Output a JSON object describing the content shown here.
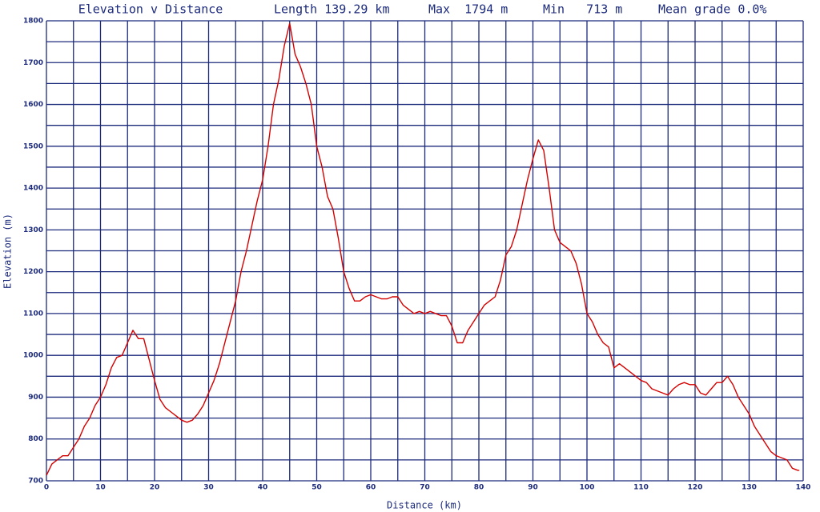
{
  "chart_data": {
    "type": "line",
    "title": "Elevation v Distance",
    "stats": [
      "Length 139.29 km",
      "Max  1794 m",
      "Min   713 m",
      "Mean grade 0.0%"
    ],
    "x_label": "Distance (km)",
    "y_label": "Elevation (m)",
    "color": "#d40000",
    "grid": true,
    "grid_color": "#1c2a7c",
    "xlim": [
      0,
      140
    ],
    "ylim": [
      700,
      1800
    ],
    "xticks": [
      0,
      10,
      20,
      30,
      40,
      50,
      60,
      70,
      80,
      90,
      100,
      110,
      120,
      130,
      140
    ],
    "yticks": [
      700,
      800,
      900,
      1000,
      1100,
      1200,
      1300,
      1400,
      1500,
      1600,
      1700,
      1800
    ],
    "x_minor_ticks": [
      5,
      15,
      25,
      35,
      45,
      55,
      65,
      75,
      85,
      95,
      105,
      115,
      125,
      135
    ],
    "y_minor_ticks": [
      750,
      850,
      950,
      1050,
      1150,
      1250,
      1350,
      1450,
      1550,
      1650,
      1750
    ],
    "x": [
      0,
      1,
      2,
      3,
      4,
      5,
      6,
      7,
      8,
      9,
      10,
      11,
      12,
      13,
      14,
      15,
      16,
      17,
      18,
      19,
      20,
      21,
      22,
      23,
      24,
      25,
      26,
      27,
      28,
      29,
      30,
      31,
      32,
      33,
      34,
      35,
      36,
      37,
      38,
      39,
      40,
      41,
      42,
      43,
      44,
      45,
      46,
      47,
      48,
      49,
      50,
      51,
      52,
      53,
      54,
      55,
      56,
      57,
      58,
      59,
      60,
      61,
      62,
      63,
      64,
      65,
      66,
      67,
      68,
      69,
      70,
      71,
      72,
      73,
      74,
      75,
      76,
      77,
      78,
      79,
      80,
      81,
      82,
      83,
      84,
      85,
      86,
      87,
      88,
      89,
      90,
      91,
      92,
      93,
      94,
      95,
      96,
      97,
      98,
      99,
      100,
      101,
      102,
      103,
      104,
      105,
      106,
      107,
      108,
      109,
      110,
      111,
      112,
      113,
      114,
      115,
      116,
      117,
      118,
      119,
      120,
      121,
      122,
      123,
      124,
      125,
      126,
      127,
      128,
      129,
      130,
      131,
      132,
      133,
      134,
      135,
      136,
      137,
      138,
      139,
      139.29
    ],
    "values": [
      713,
      740,
      750,
      760,
      760,
      780,
      800,
      830,
      850,
      880,
      900,
      930,
      970,
      995,
      1000,
      1030,
      1060,
      1040,
      1040,
      990,
      940,
      895,
      875,
      865,
      855,
      845,
      840,
      845,
      860,
      880,
      910,
      940,
      980,
      1030,
      1080,
      1130,
      1200,
      1250,
      1310,
      1370,
      1420,
      1500,
      1600,
      1660,
      1740,
      1794,
      1720,
      1690,
      1650,
      1600,
      1500,
      1450,
      1380,
      1350,
      1280,
      1200,
      1160,
      1130,
      1130,
      1140,
      1145,
      1140,
      1135,
      1135,
      1140,
      1140,
      1120,
      1110,
      1100,
      1105,
      1100,
      1105,
      1100,
      1095,
      1095,
      1070,
      1030,
      1030,
      1060,
      1080,
      1100,
      1120,
      1130,
      1140,
      1180,
      1240,
      1260,
      1300,
      1360,
      1420,
      1470,
      1515,
      1490,
      1400,
      1300,
      1270,
      1260,
      1250,
      1220,
      1170,
      1100,
      1080,
      1050,
      1030,
      1020,
      970,
      980,
      970,
      960,
      950,
      940,
      935,
      920,
      915,
      910,
      905,
      920,
      930,
      935,
      930,
      930,
      910,
      905,
      920,
      935,
      935,
      950,
      930,
      900,
      880,
      860,
      830,
      810,
      790,
      770,
      760,
      755,
      750,
      730,
      725,
      725
    ]
  }
}
